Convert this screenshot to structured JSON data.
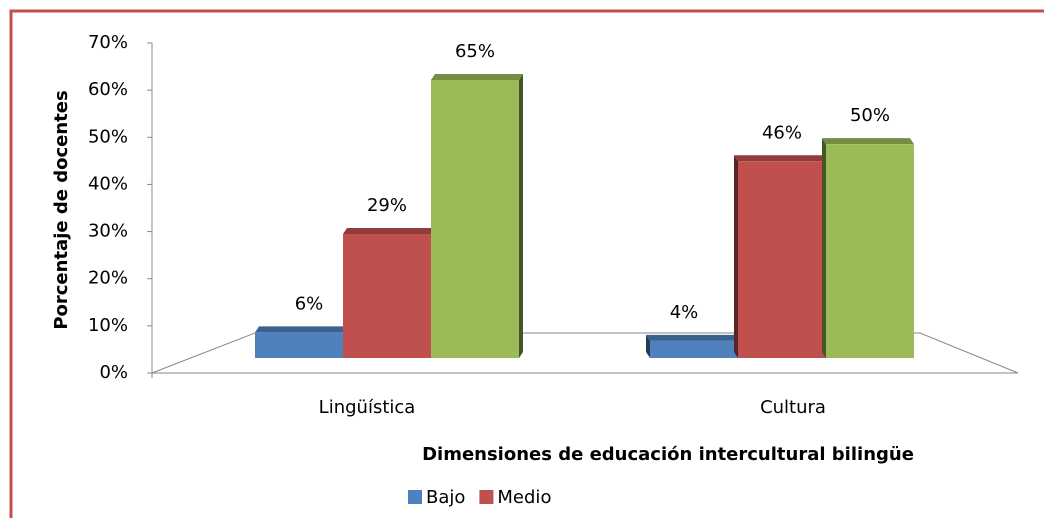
{
  "chart_data": {
    "type": "bar",
    "x_label": "Dimensiones de educación intercultural bilingüe",
    "y_label": "Porcentaje de docentes",
    "categories": [
      "Lingüística",
      "Cultura"
    ],
    "series": [
      {
        "name": "Bajo",
        "color": "#4f81bd",
        "values": [
          6,
          4
        ],
        "value_labels": [
          "6%",
          "4%"
        ]
      },
      {
        "name": "Medio",
        "color": "#c0504d",
        "values": [
          29,
          46
        ],
        "value_labels": [
          "29%",
          "46%"
        ]
      },
      {
        "color": "#9bbb59",
        "values": [
          65,
          50
        ],
        "value_labels": [
          "65%",
          "50%"
        ]
      }
    ],
    "ylim": [
      0,
      70
    ],
    "yticks": [
      {
        "value": 0,
        "label": "0%"
      },
      {
        "value": 10,
        "label": "10%"
      },
      {
        "value": 20,
        "label": "20%"
      },
      {
        "value": 30,
        "label": "30%"
      },
      {
        "value": 40,
        "label": "40%"
      },
      {
        "value": 50,
        "label": "50%"
      },
      {
        "value": 60,
        "label": "60%"
      },
      {
        "value": 70,
        "label": "70%"
      }
    ],
    "legend": "bottom"
  }
}
